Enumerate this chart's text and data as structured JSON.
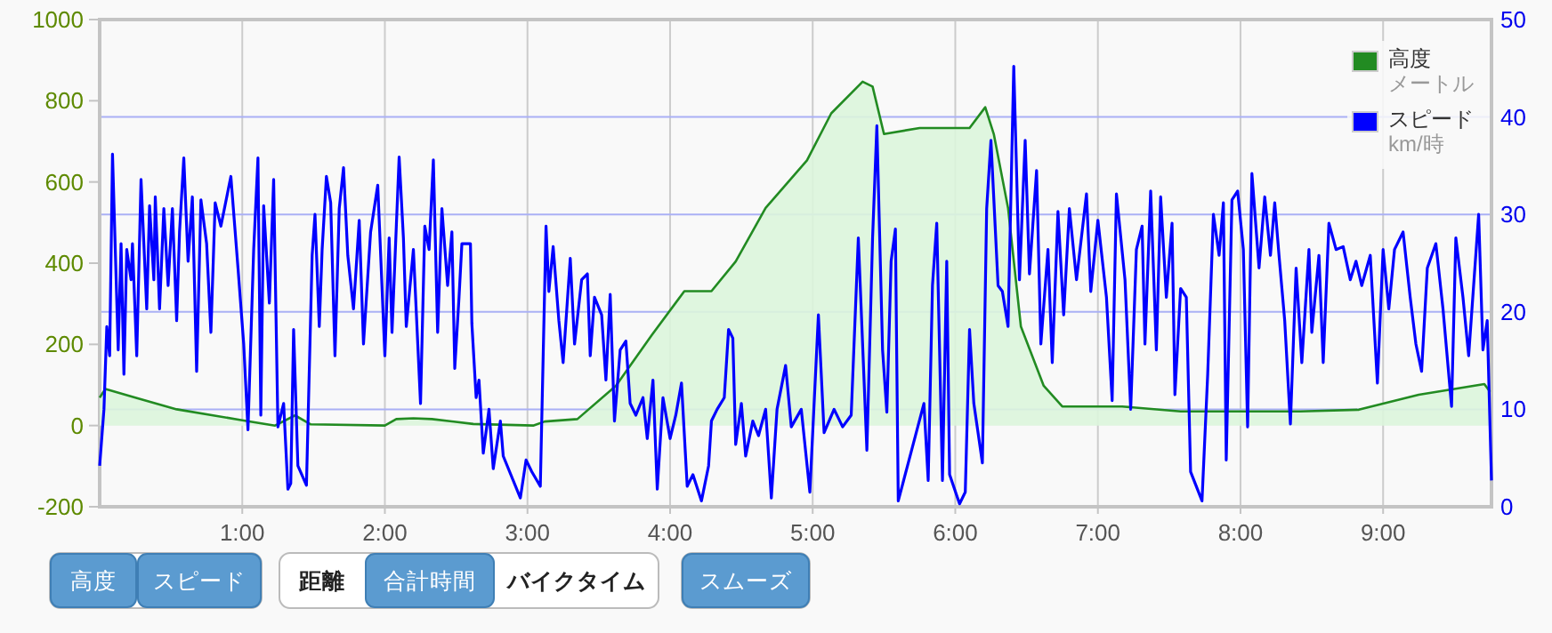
{
  "chart_data": {
    "type": "line",
    "xlim": [
      0,
      9.76
    ],
    "xticks": [
      {
        "value": 1,
        "label": "1:00"
      },
      {
        "value": 2,
        "label": "2:00"
      },
      {
        "value": 3,
        "label": "3:00"
      },
      {
        "value": 4,
        "label": "4:00"
      },
      {
        "value": 5,
        "label": "5:00"
      },
      {
        "value": 6,
        "label": "6:00"
      },
      {
        "value": 7,
        "label": "7:00"
      },
      {
        "value": 8,
        "label": "8:00"
      },
      {
        "value": 9,
        "label": "9:00"
      }
    ],
    "ylim": [
      -200,
      1000
    ],
    "yticks": [
      -200,
      0,
      200,
      400,
      600,
      800,
      1000
    ],
    "y2lim": [
      0,
      50
    ],
    "y2ticks": [
      0,
      10,
      20,
      30,
      40,
      50
    ],
    "grid": true,
    "legend": "top right",
    "annotations": [
      "高度",
      "スピード",
      "距離",
      "合計時間",
      "バイクタイム",
      "スムーズ",
      "メートル",
      "km/時"
    ],
    "series": [
      {
        "name": "高度",
        "type": "area",
        "color": "#228b22",
        "x": [
          0,
          0.04,
          0.25,
          0.54,
          1.0,
          1.23,
          1.37,
          1.48,
          2.0,
          2.08,
          2.2,
          2.33,
          2.62,
          3.04,
          3.12,
          3.35,
          3.62,
          3.87,
          4.1,
          4.29,
          4.46,
          4.67,
          4.96,
          5.13,
          5.35,
          5.42,
          5.5,
          5.75,
          6.1,
          6.21,
          6.27,
          6.37,
          6.46,
          6.62,
          6.75,
          7.17,
          7.58,
          8.42,
          8.83,
          9.25,
          9.71,
          9.75
        ],
        "values": [
          69,
          90,
          69,
          40,
          13,
          0,
          25,
          3,
          0,
          16,
          18,
          16,
          4,
          0,
          10,
          16,
          98,
          222,
          331,
          331,
          404,
          536,
          653,
          769,
          847,
          835,
          718,
          733,
          733,
          784,
          718,
          536,
          244,
          98,
          47,
          47,
          35,
          35,
          39,
          76,
          102,
          83
        ]
      },
      {
        "name": "スピード",
        "axis": "y2",
        "color": "#0000ff",
        "x": [
          0,
          0.03,
          0.05,
          0.07,
          0.09,
          0.13,
          0.15,
          0.17,
          0.19,
          0.22,
          0.23,
          0.26,
          0.29,
          0.33,
          0.35,
          0.38,
          0.39,
          0.42,
          0.45,
          0.48,
          0.51,
          0.54,
          0.56,
          0.59,
          0.62,
          0.65,
          0.68,
          0.71,
          0.75,
          0.78,
          0.81,
          0.85,
          0.92,
          0.97,
          1.01,
          1.04,
          1.08,
          1.11,
          1.13,
          1.15,
          1.19,
          1.22,
          1.25,
          1.29,
          1.32,
          1.34,
          1.36,
          1.39,
          1.45,
          1.49,
          1.51,
          1.54,
          1.56,
          1.59,
          1.62,
          1.65,
          1.68,
          1.71,
          1.74,
          1.78,
          1.82,
          1.85,
          1.9,
          1.95,
          2.0,
          2.03,
          2.05,
          2.1,
          2.13,
          2.15,
          2.2,
          2.25,
          2.28,
          2.31,
          2.34,
          2.37,
          2.4,
          2.44,
          2.47,
          2.49,
          2.52,
          2.54,
          2.6,
          2.61,
          2.64,
          2.66,
          2.69,
          2.73,
          2.76,
          2.81,
          2.83,
          2.95,
          2.99,
          3.03,
          3.09,
          3.13,
          3.15,
          3.18,
          3.22,
          3.25,
          3.3,
          3.33,
          3.38,
          3.42,
          3.44,
          3.47,
          3.52,
          3.55,
          3.58,
          3.61,
          3.65,
          3.69,
          3.72,
          3.76,
          3.81,
          3.84,
          3.88,
          3.91,
          3.95,
          4.0,
          4.04,
          4.08,
          4.12,
          4.16,
          4.22,
          4.27,
          4.29,
          4.33,
          4.38,
          4.41,
          4.44,
          4.46,
          4.5,
          4.53,
          4.58,
          4.62,
          4.67,
          4.71,
          4.75,
          4.81,
          4.85,
          4.92,
          4.98,
          5.04,
          5.08,
          5.15,
          5.21,
          5.27,
          5.32,
          5.38,
          5.42,
          5.45,
          5.49,
          5.52,
          5.55,
          5.58,
          5.6,
          5.78,
          5.81,
          5.84,
          5.87,
          5.91,
          5.94,
          5.96,
          6.03,
          6.07,
          6.1,
          6.13,
          6.19,
          6.22,
          6.25,
          6.3,
          6.33,
          6.37,
          6.41,
          6.45,
          6.49,
          6.52,
          6.57,
          6.6,
          6.65,
          6.68,
          6.72,
          6.76,
          6.8,
          6.85,
          6.92,
          6.95,
          7.0,
          7.06,
          7.1,
          7.13,
          7.19,
          7.23,
          7.27,
          7.31,
          7.33,
          7.37,
          7.41,
          7.44,
          7.48,
          7.52,
          7.54,
          7.58,
          7.62,
          7.65,
          7.73,
          7.77,
          7.81,
          7.85,
          7.88,
          7.9,
          7.94,
          7.98,
          8.02,
          8.05,
          8.08,
          8.13,
          8.17,
          8.21,
          8.24,
          8.27,
          8.31,
          8.35,
          8.39,
          8.43,
          8.48,
          8.5,
          8.55,
          8.58,
          8.62,
          8.67,
          8.72,
          8.77,
          8.81,
          8.85,
          8.91,
          8.96,
          9.0,
          9.04,
          9.08,
          9.14,
          9.19,
          9.23,
          9.27,
          9.31,
          9.37,
          9.42,
          9.48,
          9.51,
          9.56,
          9.6,
          9.67,
          9.7,
          9.73,
          9.76
        ],
        "values": [
          4.2,
          10,
          18.5,
          15.5,
          36.2,
          16.1,
          27,
          13.6,
          26.4,
          23.3,
          27,
          15.5,
          33.6,
          20.3,
          30.9,
          23.3,
          31.8,
          20.3,
          30.6,
          22.7,
          30.6,
          19.1,
          28.2,
          35.8,
          25.2,
          31.8,
          13.9,
          31.5,
          27,
          17.9,
          31.2,
          28.8,
          33.9,
          24.5,
          16.7,
          7.9,
          26.4,
          35.8,
          9.4,
          30.9,
          20.9,
          33.6,
          8.2,
          10.6,
          1.8,
          2.4,
          18.2,
          4.2,
          2.2,
          25.8,
          30,
          18.5,
          26.4,
          33.9,
          31.2,
          15.5,
          30.6,
          34.8,
          25.8,
          20.3,
          29.4,
          16.7,
          28.2,
          33,
          15.5,
          27.6,
          17.9,
          35.9,
          27.6,
          18.5,
          26.4,
          10.6,
          28.8,
          26.4,
          35.6,
          17.9,
          30.6,
          22.7,
          28.2,
          14.2,
          21.5,
          27,
          27,
          18.8,
          11.2,
          13,
          5.5,
          10,
          3.9,
          8.8,
          5.2,
          0.9,
          4.8,
          3.6,
          2.1,
          28.8,
          22.1,
          26.7,
          19.1,
          14.8,
          25.5,
          16.7,
          23.3,
          23.9,
          15.5,
          21.5,
          19.7,
          13,
          21.8,
          8.8,
          16.1,
          17,
          10.6,
          9.4,
          11.2,
          7,
          13,
          1.8,
          11.2,
          7,
          9.4,
          12.7,
          2.1,
          3.3,
          0.6,
          4.2,
          8.8,
          10,
          11.2,
          18.2,
          17.3,
          6.4,
          10.6,
          5.2,
          8.8,
          7.3,
          10,
          0.9,
          10,
          14.5,
          8.2,
          10,
          1.5,
          19.7,
          7.6,
          10,
          8.2,
          9.4,
          27.6,
          5.8,
          27.6,
          39.1,
          16.1,
          9.7,
          25.2,
          28.5,
          0.6,
          10.6,
          2.7,
          22.7,
          29.1,
          2.7,
          25.2,
          3.3,
          0.3,
          1.5,
          18.2,
          10.6,
          4.5,
          30.6,
          37.6,
          22.7,
          22.1,
          18.5,
          45.2,
          23.3,
          37.6,
          23.9,
          34.5,
          16.7,
          26.4,
          14.8,
          30.3,
          19.7,
          30.6,
          23.3,
          32.1,
          22.1,
          29.4,
          21.5,
          10.9,
          32.1,
          23.3,
          10,
          26.4,
          28.8,
          16.7,
          32.4,
          16.1,
          31.8,
          21.5,
          29.1,
          11.5,
          22.4,
          21.5,
          3.6,
          0.6,
          13.6,
          30,
          25.8,
          31.2,
          4.8,
          31.5,
          32.4,
          26.4,
          8.2,
          34.2,
          24.5,
          31.8,
          25.8,
          31.2,
          25.8,
          19.1,
          8.5,
          24.5,
          14.8,
          26.4,
          17.9,
          25.8,
          14.8,
          29.1,
          26.4,
          26.7,
          23.3,
          25.2,
          22.7,
          25.8,
          12.7,
          26.4,
          20.3,
          26.4,
          28.2,
          21.5,
          16.7,
          13.9,
          24.5,
          27,
          20.3,
          10.3,
          27.6,
          21.5,
          15.5,
          30,
          16.1,
          19.1,
          2.7
        ]
      }
    ]
  }
}
